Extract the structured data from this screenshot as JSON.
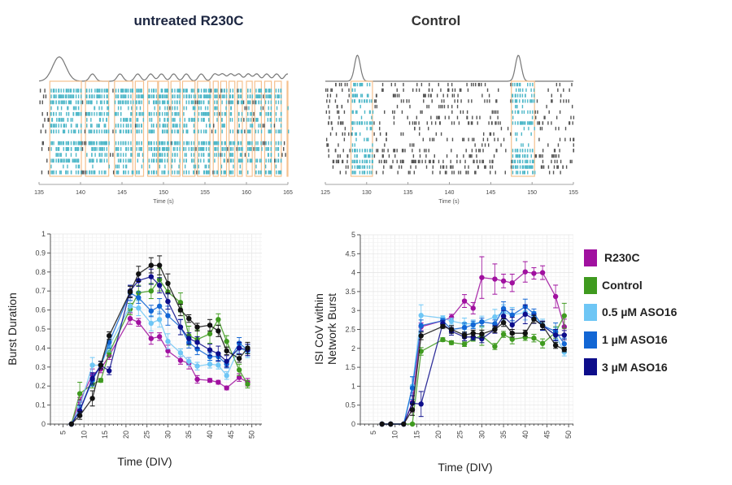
{
  "raster_panels": [
    {
      "title": "untreated R230C",
      "xlabel": "Time (s)",
      "xlim": [
        135,
        165
      ],
      "ticks": [
        135,
        140,
        145,
        150,
        155,
        160,
        165
      ],
      "bursts_s": [
        [
          136.3,
          140.1
        ],
        [
          140.6,
          143.4
        ],
        [
          144.1,
          146.3
        ],
        [
          146.6,
          147.6
        ],
        [
          148.1,
          149.3
        ],
        [
          149.4,
          150.6
        ],
        [
          150.9,
          152.0
        ],
        [
          152.3,
          153.8
        ],
        [
          154.1,
          155.6
        ],
        [
          156.0,
          156.6
        ],
        [
          156.9,
          157.6
        ],
        [
          157.9,
          158.6
        ],
        [
          158.9,
          159.5
        ],
        [
          160.0,
          160.7
        ],
        [
          161.0,
          161.8
        ],
        [
          162.2,
          163.0
        ],
        [
          163.4,
          164.2
        ],
        [
          164.9,
          165.0
        ]
      ]
    },
    {
      "title": "Control",
      "xlabel": "Time (s)",
      "xlim": [
        125,
        155
      ],
      "ticks": [
        125,
        130,
        135,
        140,
        145,
        150,
        155
      ],
      "bursts_s": [
        [
          128.1,
          130.7
        ],
        [
          147.5,
          150.3
        ]
      ]
    }
  ],
  "colors": {
    "burst_box": "#f5c08e",
    "burst_spike": "#4fb8c9",
    "spike": "#555555",
    "trace": "#777777"
  },
  "legend": [
    {
      "label": "R230C",
      "color": "#a0109f"
    },
    {
      "label": "Control",
      "color": "#3f9a1f"
    },
    {
      "label": "0.5 µM ASO16",
      "color": "#6ec6f5"
    },
    {
      "label": "1 µM ASO16",
      "color": "#1266d4"
    },
    {
      "label": "3 µM ASO16",
      "color": "#0d0d8a"
    }
  ],
  "chart_data": [
    {
      "type": "line",
      "xlabel": "Time (DIV)",
      "ylabel": "Burst Duration",
      "xlim": [
        2,
        52.4
      ],
      "ylim": [
        0,
        1
      ],
      "xticks": [
        5,
        10,
        15,
        20,
        25,
        30,
        35,
        40,
        45,
        50
      ],
      "yticks": [
        "0",
        "0.1",
        "0.2",
        "0.3",
        "0.4",
        "0.5",
        "0.6",
        "0.7",
        "0.8",
        "0.9",
        "1"
      ],
      "grid": true,
      "x": [
        7,
        9,
        12,
        14,
        16,
        21,
        23,
        26,
        28,
        30,
        33,
        35,
        37,
        40,
        42,
        44,
        47,
        49
      ],
      "series": [
        {
          "name": "R230C",
          "color": "#a0109f",
          "values": [
            0,
            0.12,
            0.26,
            0.29,
            0.36,
            0.555,
            0.535,
            0.45,
            0.46,
            0.385,
            0.335,
            0.32,
            0.235,
            0.23,
            0.22,
            0.19,
            0.245,
            0.22
          ],
          "error": [
            0,
            0.02,
            0.03,
            0.02,
            0.02,
            0.03,
            0.02,
            0.03,
            0.02,
            0.03,
            0.02,
            0.03,
            0.02,
            0.01,
            0.01,
            0.01,
            0.02,
            0.02
          ]
        },
        {
          "name": "Control",
          "color": "#3f9a1f",
          "values": [
            0,
            0.16,
            0.21,
            0.23,
            0.375,
            0.605,
            0.69,
            0.7,
            0.76,
            0.695,
            0.64,
            0.465,
            0.445,
            0.475,
            0.55,
            0.435,
            0.285,
            0.21
          ],
          "error": [
            0,
            0.06,
            0.02,
            0.01,
            0.02,
            0.03,
            0.04,
            0.04,
            0.06,
            0.05,
            0.05,
            0.05,
            0.05,
            0.05,
            0.03,
            0.03,
            0.03,
            0.02
          ]
        },
        {
          "name": "0.5 µM ASO16",
          "color": "#6ec6f5",
          "values": [
            0,
            0.09,
            0.31,
            0.31,
            0.41,
            0.62,
            0.61,
            0.53,
            0.55,
            0.435,
            0.375,
            0.33,
            0.305,
            0.315,
            0.31,
            0.255,
            0.4,
            0.38
          ],
          "error": [
            0,
            0.03,
            0.04,
            0.02,
            0.03,
            0.03,
            0.04,
            0.04,
            0.04,
            0.04,
            0.02,
            0.02,
            0.02,
            0.02,
            0.02,
            0.02,
            0.03,
            0.03
          ]
        },
        {
          "name": "1 µM ASO16",
          "color": "#1266d4",
          "values": [
            0,
            0.07,
            0.23,
            0.31,
            0.43,
            0.69,
            0.665,
            0.595,
            0.62,
            0.57,
            0.51,
            0.43,
            0.395,
            0.355,
            0.355,
            0.315,
            0.425,
            0.39
          ],
          "error": [
            0,
            0.03,
            0.03,
            0.02,
            0.03,
            0.04,
            0.03,
            0.03,
            0.04,
            0.05,
            0.04,
            0.03,
            0.03,
            0.02,
            0.02,
            0.02,
            0.03,
            0.03
          ]
        },
        {
          "name": "3 µM ASO16",
          "color": "#0d0d8a",
          "values": [
            0,
            0.07,
            0.24,
            0.31,
            0.28,
            0.7,
            0.755,
            0.775,
            0.73,
            0.645,
            0.51,
            0.45,
            0.43,
            0.39,
            0.37,
            0.33,
            0.4,
            0.39
          ],
          "error": [
            0,
            0.03,
            0.03,
            0.02,
            0.02,
            0.03,
            0.03,
            0.04,
            0.04,
            0.04,
            0.04,
            0.03,
            0.03,
            0.03,
            0.04,
            0.03,
            0.03,
            0.03
          ]
        },
        {
          "color": "#111111",
          "values": [
            0,
            0.045,
            0.135,
            0.31,
            0.465,
            0.695,
            0.79,
            0.835,
            0.835,
            0.74,
            0.6,
            0.555,
            0.51,
            0.52,
            0.49,
            0.385,
            0.345,
            0.4
          ],
          "error": [
            0,
            0.02,
            0.04,
            0.02,
            0.02,
            0.03,
            0.04,
            0.04,
            0.05,
            0.05,
            0.03,
            0.02,
            0.02,
            0.03,
            0.03,
            0.02,
            0.02,
            0.03
          ]
        }
      ]
    },
    {
      "type": "line",
      "xlabel": "Time (DIV)",
      "ylabel": "ISI CoV within Network Burst",
      "ylabel_lines": [
        "ISI CoV within",
        "Network Burst"
      ],
      "xlim": [
        2,
        51.1
      ],
      "ylim": [
        0,
        5
      ],
      "xticks": [
        5,
        10,
        15,
        20,
        25,
        30,
        35,
        40,
        45,
        50
      ],
      "yticks": [
        "0",
        "0.5",
        "1",
        "1.5",
        "2",
        "2.5",
        "3",
        "3.5",
        "4",
        "4.5",
        "5"
      ],
      "grid": true,
      "x": [
        7,
        9,
        12,
        14,
        16,
        21,
        23,
        26,
        28,
        30,
        33,
        35,
        37,
        40,
        42,
        44,
        47,
        49
      ],
      "series": [
        {
          "name": "R230C",
          "color": "#a0109f",
          "values": [
            0,
            0,
            0,
            0.57,
            2.57,
            2.73,
            2.82,
            3.25,
            3.06,
            3.87,
            3.83,
            3.78,
            3.73,
            4.02,
            3.98,
            4.0,
            3.37,
            2.57
          ],
          "error": [
            0,
            0,
            0,
            0.25,
            0.1,
            0.05,
            0.08,
            0.17,
            0.15,
            0.55,
            0.4,
            0.18,
            0.23,
            0.27,
            0.15,
            0.18,
            0.3,
            0.2
          ]
        },
        {
          "name": "Control",
          "color": "#3f9a1f",
          "values": [
            0,
            0,
            0,
            0,
            1.92,
            2.23,
            2.15,
            2.11,
            2.25,
            2.33,
            2.05,
            2.37,
            2.24,
            2.29,
            2.27,
            2.13,
            2.42,
            2.86
          ],
          "error": [
            0,
            0,
            0,
            0.02,
            0.1,
            0.05,
            0.05,
            0.06,
            0.06,
            0.25,
            0.08,
            0.08,
            0.12,
            0.08,
            0.1,
            0.12,
            0.15,
            0.33
          ]
        },
        {
          "name": "0.5 µM ASO16",
          "color": "#6ec6f5",
          "values": [
            0,
            0,
            0,
            1.0,
            2.87,
            2.8,
            2.72,
            2.65,
            2.65,
            2.7,
            2.83,
            2.95,
            2.88,
            2.95,
            2.85,
            2.62,
            2.35,
            1.9
          ],
          "error": [
            0,
            0,
            0,
            0.25,
            0.28,
            0.06,
            0.08,
            0.15,
            0.1,
            0.15,
            0.2,
            0.2,
            0.2,
            0.2,
            0.12,
            0.15,
            0.2,
            0.1
          ]
        },
        {
          "name": "1 µM ASO16",
          "color": "#1266d4",
          "values": [
            0,
            0,
            0,
            0.95,
            2.6,
            2.73,
            2.5,
            2.55,
            2.62,
            2.7,
            2.65,
            3.05,
            2.88,
            3.1,
            2.92,
            2.6,
            2.45,
            2.12
          ],
          "error": [
            0,
            0,
            0,
            0.3,
            0.15,
            0.06,
            0.1,
            0.12,
            0.1,
            0.1,
            0.1,
            0.18,
            0.15,
            0.2,
            0.12,
            0.12,
            0.22,
            0.15
          ]
        },
        {
          "name": "3 µM ASO16",
          "color": "#0d0d8a",
          "values": [
            0,
            0,
            0,
            0.55,
            0.53,
            2.65,
            2.45,
            2.3,
            2.3,
            2.25,
            2.5,
            2.85,
            2.62,
            2.9,
            2.78,
            2.6,
            2.35,
            2.35
          ],
          "error": [
            0,
            0,
            0,
            0.2,
            0.33,
            0.08,
            0.1,
            0.1,
            0.08,
            0.1,
            0.1,
            0.15,
            0.2,
            0.25,
            0.12,
            0.12,
            0.15,
            0.12
          ]
        },
        {
          "color": "#111111",
          "values": [
            0,
            0,
            0,
            0.38,
            2.33,
            2.58,
            2.5,
            2.35,
            2.4,
            2.38,
            2.5,
            2.68,
            2.4,
            2.4,
            2.77,
            2.6,
            2.08,
            1.97
          ],
          "error": [
            0,
            0,
            0,
            0.15,
            0.1,
            0.05,
            0.1,
            0.08,
            0.08,
            0.1,
            0.08,
            0.1,
            0.1,
            0.08,
            0.1,
            0.1,
            0.08,
            0.06
          ]
        }
      ]
    }
  ]
}
